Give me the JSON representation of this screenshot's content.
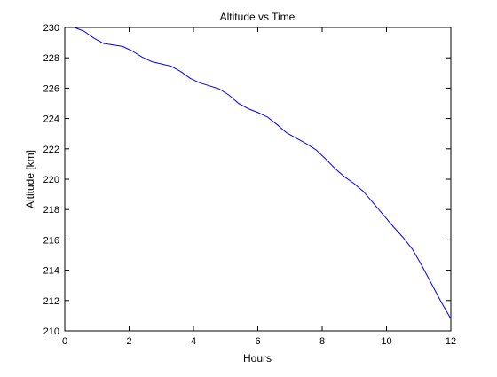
{
  "chart_data": {
    "type": "line",
    "title": "Altitude vs Time",
    "xlabel": "Hours",
    "ylabel": "Altitude [km]",
    "xlim": [
      0,
      12
    ],
    "ylim": [
      210,
      230
    ],
    "xticks": [
      0,
      2,
      4,
      6,
      8,
      10,
      12
    ],
    "yticks": [
      210,
      212,
      214,
      216,
      218,
      220,
      222,
      224,
      226,
      228,
      230
    ],
    "grid": false,
    "legend": false,
    "colors": {
      "line": "#0000ff",
      "axes": "#000000",
      "background": "#ffffff"
    },
    "series": [
      {
        "x": [
          0.3,
          0.6,
          0.9,
          1.2,
          1.5,
          1.8,
          2.1,
          2.4,
          2.7,
          3.0,
          3.3,
          3.6,
          3.9,
          4.2,
          4.5,
          4.8,
          5.1,
          5.4,
          5.7,
          6.0,
          6.3,
          6.6,
          6.9,
          7.2,
          7.5,
          7.8,
          8.1,
          8.4,
          8.7,
          9.0,
          9.3,
          9.6,
          9.9,
          10.2,
          10.5,
          10.8,
          11.1,
          11.4,
          11.7,
          12.0
        ],
        "y": [
          230.0,
          229.75,
          229.3,
          228.95,
          228.85,
          228.75,
          228.45,
          228.05,
          227.75,
          227.6,
          227.45,
          227.1,
          226.65,
          226.35,
          226.15,
          225.95,
          225.55,
          225.0,
          224.65,
          224.4,
          224.1,
          223.6,
          223.05,
          222.7,
          222.35,
          221.95,
          221.35,
          220.7,
          220.15,
          219.7,
          219.15,
          218.4,
          217.65,
          216.9,
          216.2,
          215.4,
          214.3,
          213.1,
          211.9,
          210.8
        ]
      }
    ]
  }
}
